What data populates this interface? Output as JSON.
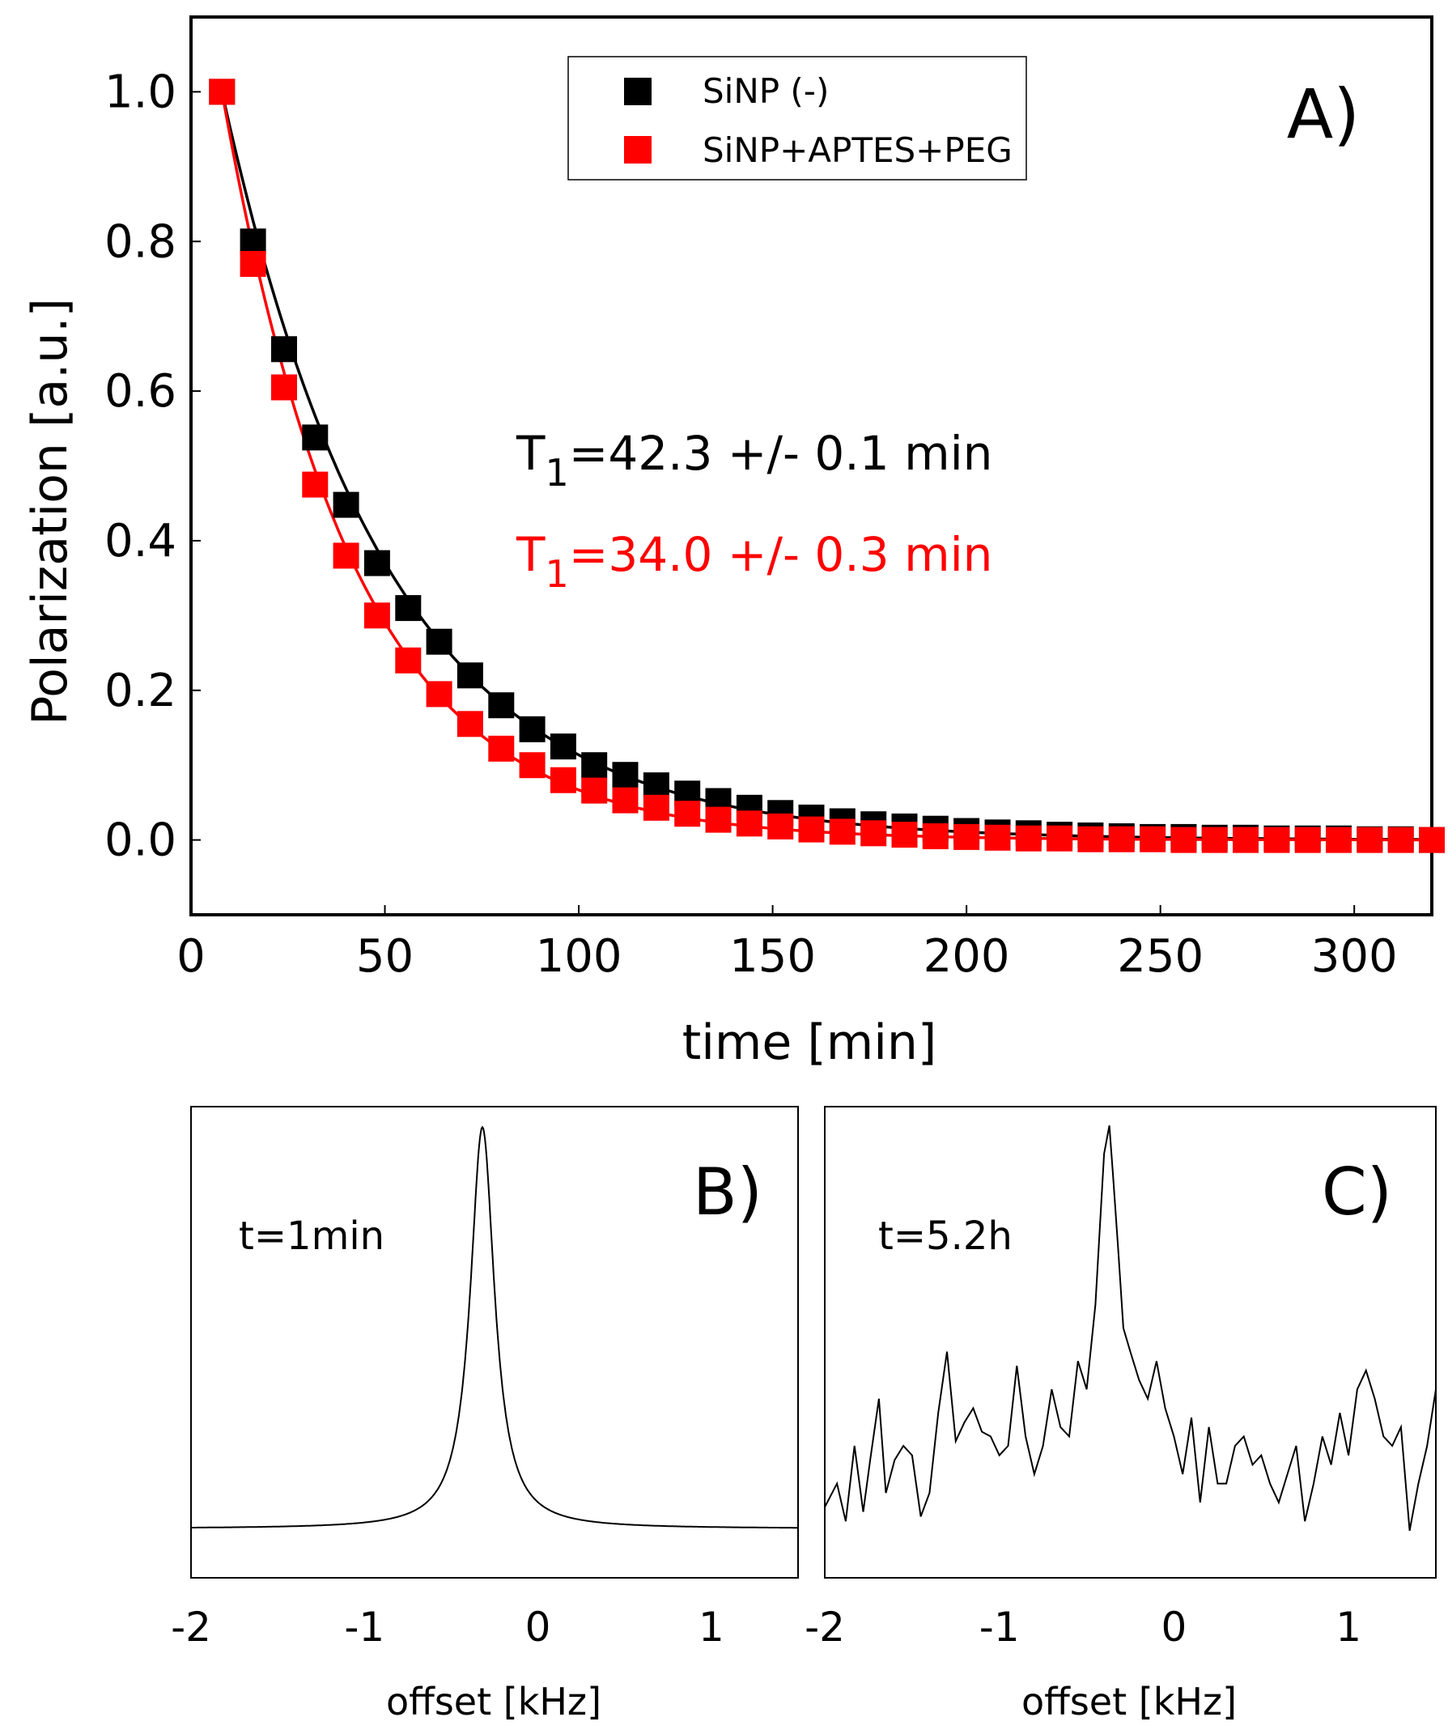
{
  "chart_data": [
    {
      "id": "A",
      "type": "scatter",
      "panel_label": "A)",
      "xlabel": "time [min]",
      "ylabel": "Polarization [a.u.]",
      "xlim": [
        0,
        320
      ],
      "ylim": [
        -0.1,
        1.1
      ],
      "xticks": [
        0,
        50,
        100,
        150,
        200,
        250,
        300
      ],
      "yticks": [
        0.0,
        0.2,
        0.4,
        0.6,
        0.8,
        1.0
      ],
      "ytick_labels": [
        "0.0",
        "0.2",
        "0.4",
        "0.6",
        "0.8",
        "1.0"
      ],
      "grid": false,
      "legend_position": "top-center",
      "series": [
        {
          "name": "SiNP (-)",
          "color": "#000000",
          "marker": "square",
          "x": [
            8,
            16,
            24,
            32,
            40,
            48,
            56,
            64,
            72,
            80,
            88,
            96,
            104,
            112,
            120,
            128,
            136,
            144,
            152,
            160,
            168,
            176,
            184,
            192,
            200,
            208,
            216,
            224,
            232,
            240,
            248,
            256,
            264,
            272,
            280,
            288,
            296,
            304,
            312,
            320
          ],
          "y": [
            1.0,
            0.8,
            0.656,
            0.538,
            0.448,
            0.37,
            0.31,
            0.265,
            0.22,
            0.18,
            0.148,
            0.125,
            0.1,
            0.087,
            0.073,
            0.062,
            0.052,
            0.043,
            0.036,
            0.03,
            0.025,
            0.021,
            0.018,
            0.015,
            0.012,
            0.01,
            0.009,
            0.007,
            0.006,
            0.005,
            0.004,
            0.004,
            0.003,
            0.003,
            0.002,
            0.002,
            0.002,
            0.001,
            0.001,
            0.0
          ],
          "fit": {
            "model": "exponential",
            "T1": 42.3,
            "x0": 8,
            "x_end": 320
          },
          "annotation_main": "T",
          "annotation_sub": "1",
          "annotation_rest": "=42.3 +/- 0.1 min"
        },
        {
          "name": "SiNP+APTES+PEG",
          "color": "#ff0000",
          "marker": "square",
          "x": [
            8,
            16,
            24,
            32,
            40,
            48,
            56,
            64,
            72,
            80,
            88,
            96,
            104,
            112,
            120,
            128,
            136,
            144,
            152,
            160,
            168,
            176,
            184,
            192,
            200,
            208,
            216,
            224,
            232,
            240,
            248,
            256,
            264,
            272,
            280,
            288,
            296,
            304,
            312,
            320
          ],
          "y": [
            1.0,
            0.77,
            0.605,
            0.475,
            0.38,
            0.3,
            0.24,
            0.195,
            0.155,
            0.122,
            0.1,
            0.08,
            0.066,
            0.053,
            0.043,
            0.035,
            0.027,
            0.022,
            0.018,
            0.014,
            0.011,
            0.009,
            0.007,
            0.005,
            0.004,
            0.003,
            0.002,
            0.002,
            0.001,
            0.001,
            0.001,
            0.0,
            0.0,
            0.0,
            0.0,
            0.0,
            0.0,
            0.0,
            0.0,
            0.0
          ],
          "fit": {
            "model": "exponential",
            "T1": 34.0,
            "x0": 8,
            "x_end": 320
          },
          "annotation_main": "T",
          "annotation_sub": "1",
          "annotation_rest": "=34.0 +/- 0.3 min"
        }
      ]
    },
    {
      "id": "B",
      "type": "line",
      "panel_label": "B)",
      "annotation": "t=1min",
      "xlabel": "offset [kHz]",
      "xlim": [
        -2,
        1.5
      ],
      "xticks": [
        -2,
        -1,
        0,
        1
      ],
      "ylim": [
        -0.1,
        1.05
      ],
      "line": {
        "model": "lorentzian",
        "center": -0.32,
        "hwhm": 0.085,
        "baseline": 0.02,
        "peak": 1.0
      }
    },
    {
      "id": "C",
      "type": "line",
      "panel_label": "C)",
      "annotation": "t=5.2h",
      "xlabel": "offset [kHz]",
      "xlim": [
        -2,
        1.5
      ],
      "xticks": [
        -2,
        -1,
        0,
        1
      ],
      "ylim": [
        0,
        1
      ],
      "x": [
        -2.0,
        -1.93,
        -1.88,
        -1.83,
        -1.78,
        -1.74,
        -1.69,
        -1.65,
        -1.6,
        -1.55,
        -1.5,
        -1.45,
        -1.4,
        -1.35,
        -1.3,
        -1.25,
        -1.2,
        -1.15,
        -1.1,
        -1.05,
        -1.0,
        -0.95,
        -0.9,
        -0.85,
        -0.8,
        -0.75,
        -0.7,
        -0.65,
        -0.6,
        -0.55,
        -0.5,
        -0.45,
        -0.4,
        -0.37,
        -0.35,
        -0.32,
        -0.29,
        -0.25,
        -0.2,
        -0.15,
        -0.1,
        -0.05,
        0.0,
        0.05,
        0.1,
        0.15,
        0.2,
        0.25,
        0.3,
        0.35,
        0.4,
        0.45,
        0.5,
        0.55,
        0.6,
        0.65,
        0.7,
        0.75,
        0.8,
        0.85,
        0.9,
        0.95,
        1.0,
        1.05,
        1.1,
        1.15,
        1.2,
        1.25,
        1.3,
        1.35,
        1.4,
        1.45,
        1.5
      ],
      "y": [
        0.15,
        0.2,
        0.12,
        0.28,
        0.14,
        0.25,
        0.38,
        0.18,
        0.25,
        0.28,
        0.26,
        0.13,
        0.18,
        0.35,
        0.48,
        0.29,
        0.33,
        0.36,
        0.31,
        0.3,
        0.26,
        0.28,
        0.45,
        0.3,
        0.22,
        0.28,
        0.4,
        0.32,
        0.3,
        0.46,
        0.4,
        0.58,
        0.9,
        0.96,
        0.86,
        0.7,
        0.53,
        0.48,
        0.42,
        0.38,
        0.46,
        0.36,
        0.3,
        0.22,
        0.34,
        0.16,
        0.32,
        0.2,
        0.2,
        0.28,
        0.3,
        0.24,
        0.26,
        0.2,
        0.16,
        0.22,
        0.28,
        0.12,
        0.2,
        0.3,
        0.24,
        0.35,
        0.26,
        0.4,
        0.44,
        0.38,
        0.3,
        0.28,
        0.32,
        0.1,
        0.2,
        0.28,
        0.4
      ]
    }
  ]
}
